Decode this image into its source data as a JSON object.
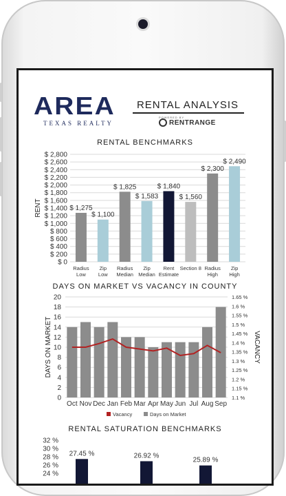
{
  "brand": {
    "logo_text": "AREA",
    "logo_sub": "TEXAS REALTY",
    "report_title": "RENTAL ANALYSIS",
    "powered_by": "POWERED BY",
    "provider": "RENTRANGE"
  },
  "chart_data": [
    {
      "type": "bar",
      "title": "RENTAL BENCHMARKS",
      "ylabel": "RENT",
      "ylim": [
        0,
        2800
      ],
      "yticks": [
        0,
        200,
        400,
        600,
        800,
        1000,
        1200,
        1400,
        1600,
        1800,
        2000,
        2200,
        2400,
        2600,
        2800
      ],
      "ytick_labels": [
        "$ 0",
        "$ 200",
        "$ 400",
        "$ 600",
        "$ 800",
        "$ 1,000",
        "$ 1,200",
        "$ 1,400",
        "$ 1,600",
        "$ 1,800",
        "$ 2,000",
        "$ 2,200",
        "$ 2,400",
        "$ 2,600",
        "$ 2,800"
      ],
      "categories": [
        [
          "Radius",
          "Low"
        ],
        [
          "Zip",
          "Low"
        ],
        [
          "Radius",
          "Median"
        ],
        [
          "Zip",
          "Median"
        ],
        [
          "Rent",
          "Estimate"
        ],
        [
          "Section 8"
        ],
        [
          "Radius",
          "High"
        ],
        [
          "Zip",
          "High"
        ]
      ],
      "values": [
        1275,
        1100,
        1825,
        1583,
        1840,
        1560,
        2300,
        2490
      ],
      "value_labels": [
        "$ 1,275",
        "$ 1,100",
        "$ 1,825",
        "$ 1,583",
        "$ 1,840",
        "$ 1,560",
        "$ 2,300",
        "$ 2,490"
      ],
      "colors": [
        "#8c8c8c",
        "#a9cdd8",
        "#8c8c8c",
        "#a9cdd8",
        "#121735",
        "#bdbdbd",
        "#8c8c8c",
        "#a9cdd8"
      ],
      "grid": true
    },
    {
      "type": "bar+line",
      "title": "DAYS ON MARKET VS VACANCY IN COUNTY",
      "ylabel": "DAYS ON MARKET",
      "y2label": "VACANCY",
      "categories": [
        "Oct",
        "Nov",
        "Dec",
        "Jan",
        "Feb",
        "Mar",
        "Apr",
        "May",
        "Jun",
        "Jul",
        "Aug",
        "Sep"
      ],
      "ylim": [
        0,
        20
      ],
      "yticks": [
        0,
        2,
        4,
        6,
        8,
        10,
        12,
        14,
        16,
        18,
        20
      ],
      "y2lim": [
        1.1,
        1.65
      ],
      "y2ticks": [
        1.1,
        1.15,
        1.2,
        1.25,
        1.3,
        1.35,
        1.4,
        1.45,
        1.5,
        1.55,
        1.6,
        1.65
      ],
      "y2tick_labels": [
        "1.1 %",
        "1.15 %",
        "1.2 %",
        "1.25 %",
        "1.3 %",
        "1.35 %",
        "1.4 %",
        "1.45 %",
        "1.5 %",
        "1.55 %",
        "1.6 %",
        "1.65 %"
      ],
      "series": [
        {
          "name": "Days on Market",
          "kind": "bar",
          "color": "#8c8c8c",
          "values": [
            14,
            15,
            14,
            15,
            12,
            12,
            10,
            11,
            11,
            11,
            14,
            18
          ]
        },
        {
          "name": "Vacancy",
          "kind": "line",
          "axis": "right",
          "color": "#b22222",
          "values": [
            1.375,
            1.375,
            1.395,
            1.42,
            1.375,
            1.365,
            1.355,
            1.37,
            1.33,
            1.34,
            1.385,
            1.345
          ]
        }
      ],
      "legend": "bottom",
      "grid": true
    },
    {
      "type": "bar",
      "title": "RENTAL SATURATION BENCHMARKS",
      "ylim": [
        24,
        32
      ],
      "yticks": [
        24,
        26,
        28,
        30,
        32
      ],
      "ytick_labels": [
        "24 %",
        "26 %",
        "28 %",
        "30 %",
        "32 %"
      ],
      "values": [
        27.45,
        26.92,
        25.89
      ],
      "value_labels": [
        "27.45 %",
        "26.92 %",
        "25.89 %"
      ],
      "color": "#121735"
    }
  ]
}
